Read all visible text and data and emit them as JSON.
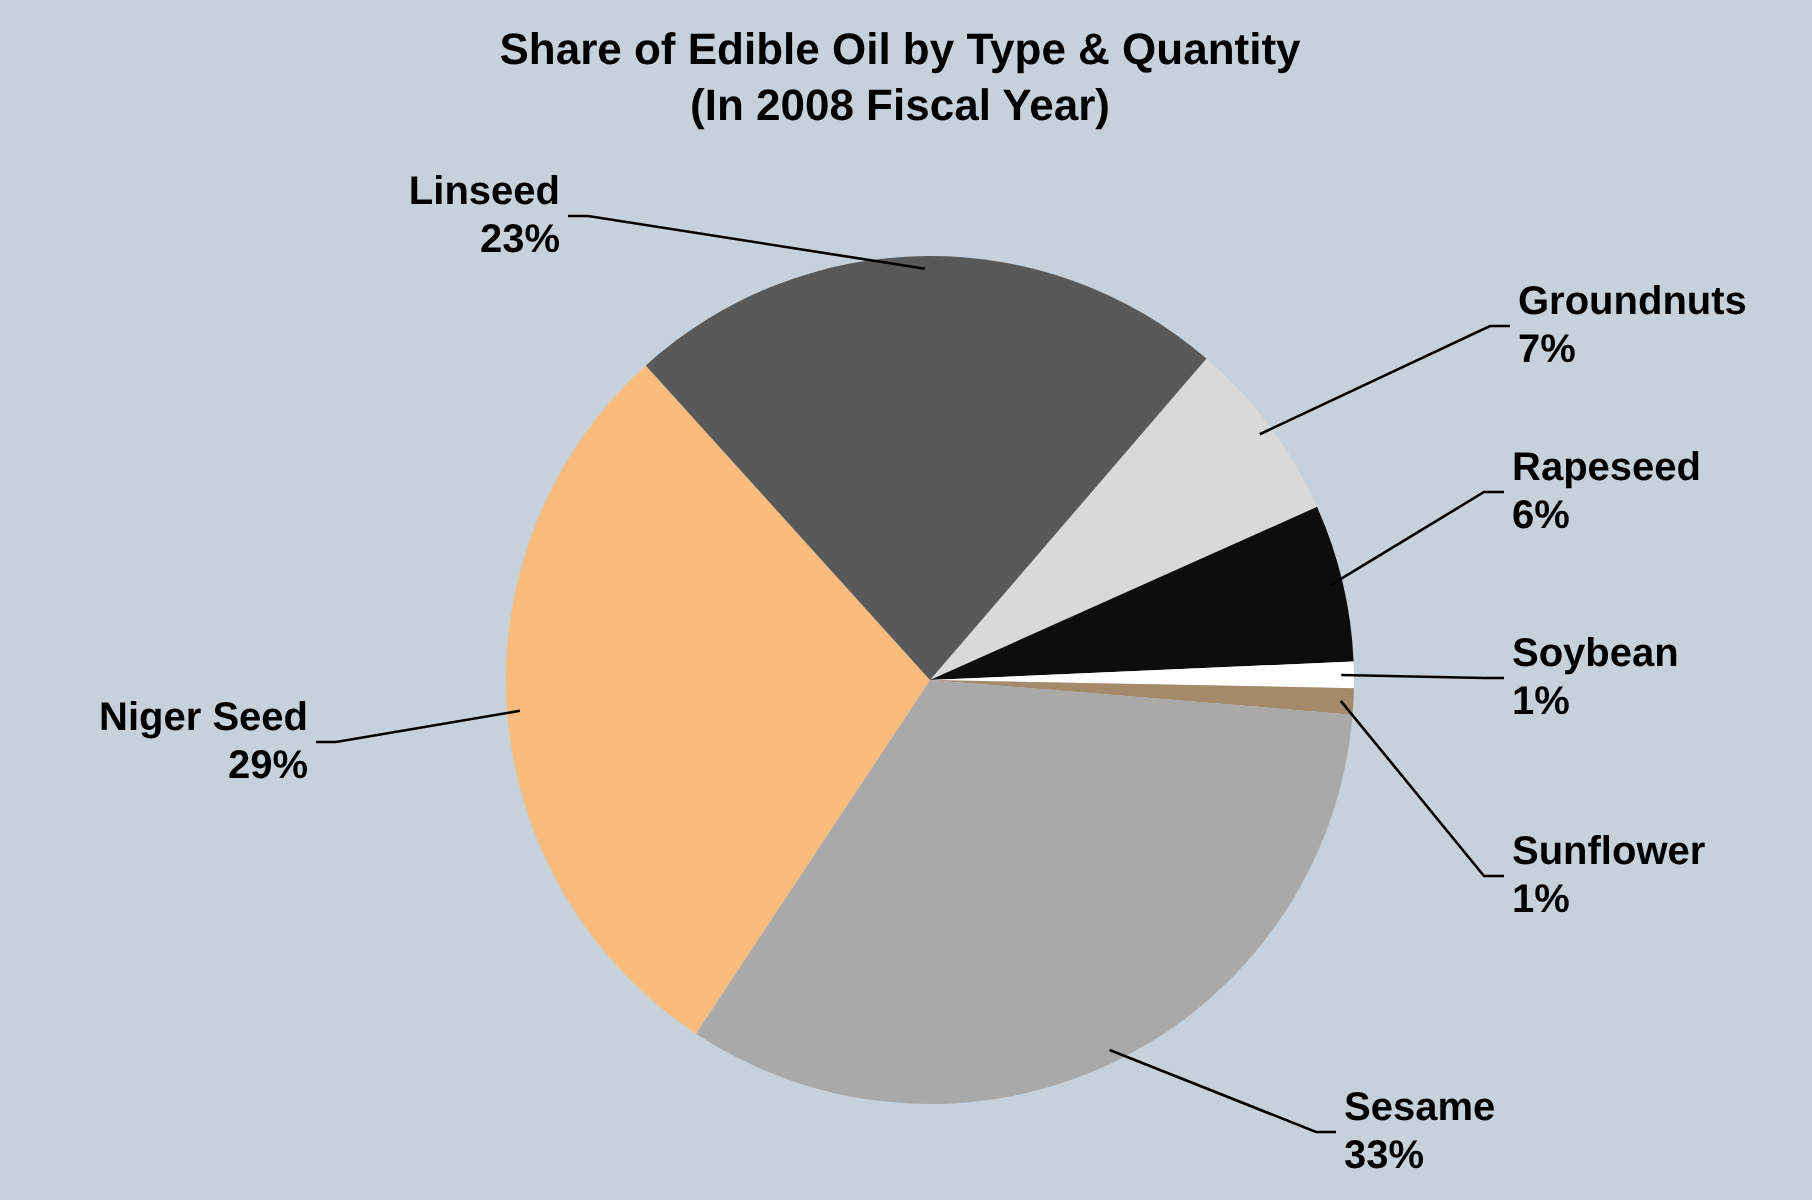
{
  "chart_data": {
    "type": "pie",
    "title": "Share of Edible Oil by Type & Quantity\n(In 2008 Fiscal Year)",
    "categories": [
      "Groundnuts",
      "Rapeseed",
      "Soybean",
      "Sunflower",
      "Sesame",
      "Niger Seed",
      "Linseed"
    ],
    "values": [
      7,
      6,
      1,
      1,
      33,
      29,
      23
    ],
    "value_labels": [
      "7%",
      "6%",
      "1%",
      "1%",
      "33%",
      "29%",
      "23%"
    ],
    "colors": [
      "#d9d9d9",
      "#0d0d0d",
      "#ffffff",
      "#a58a6a",
      "#a9a9a9",
      "#f9bc7c",
      "#595959"
    ]
  }
}
